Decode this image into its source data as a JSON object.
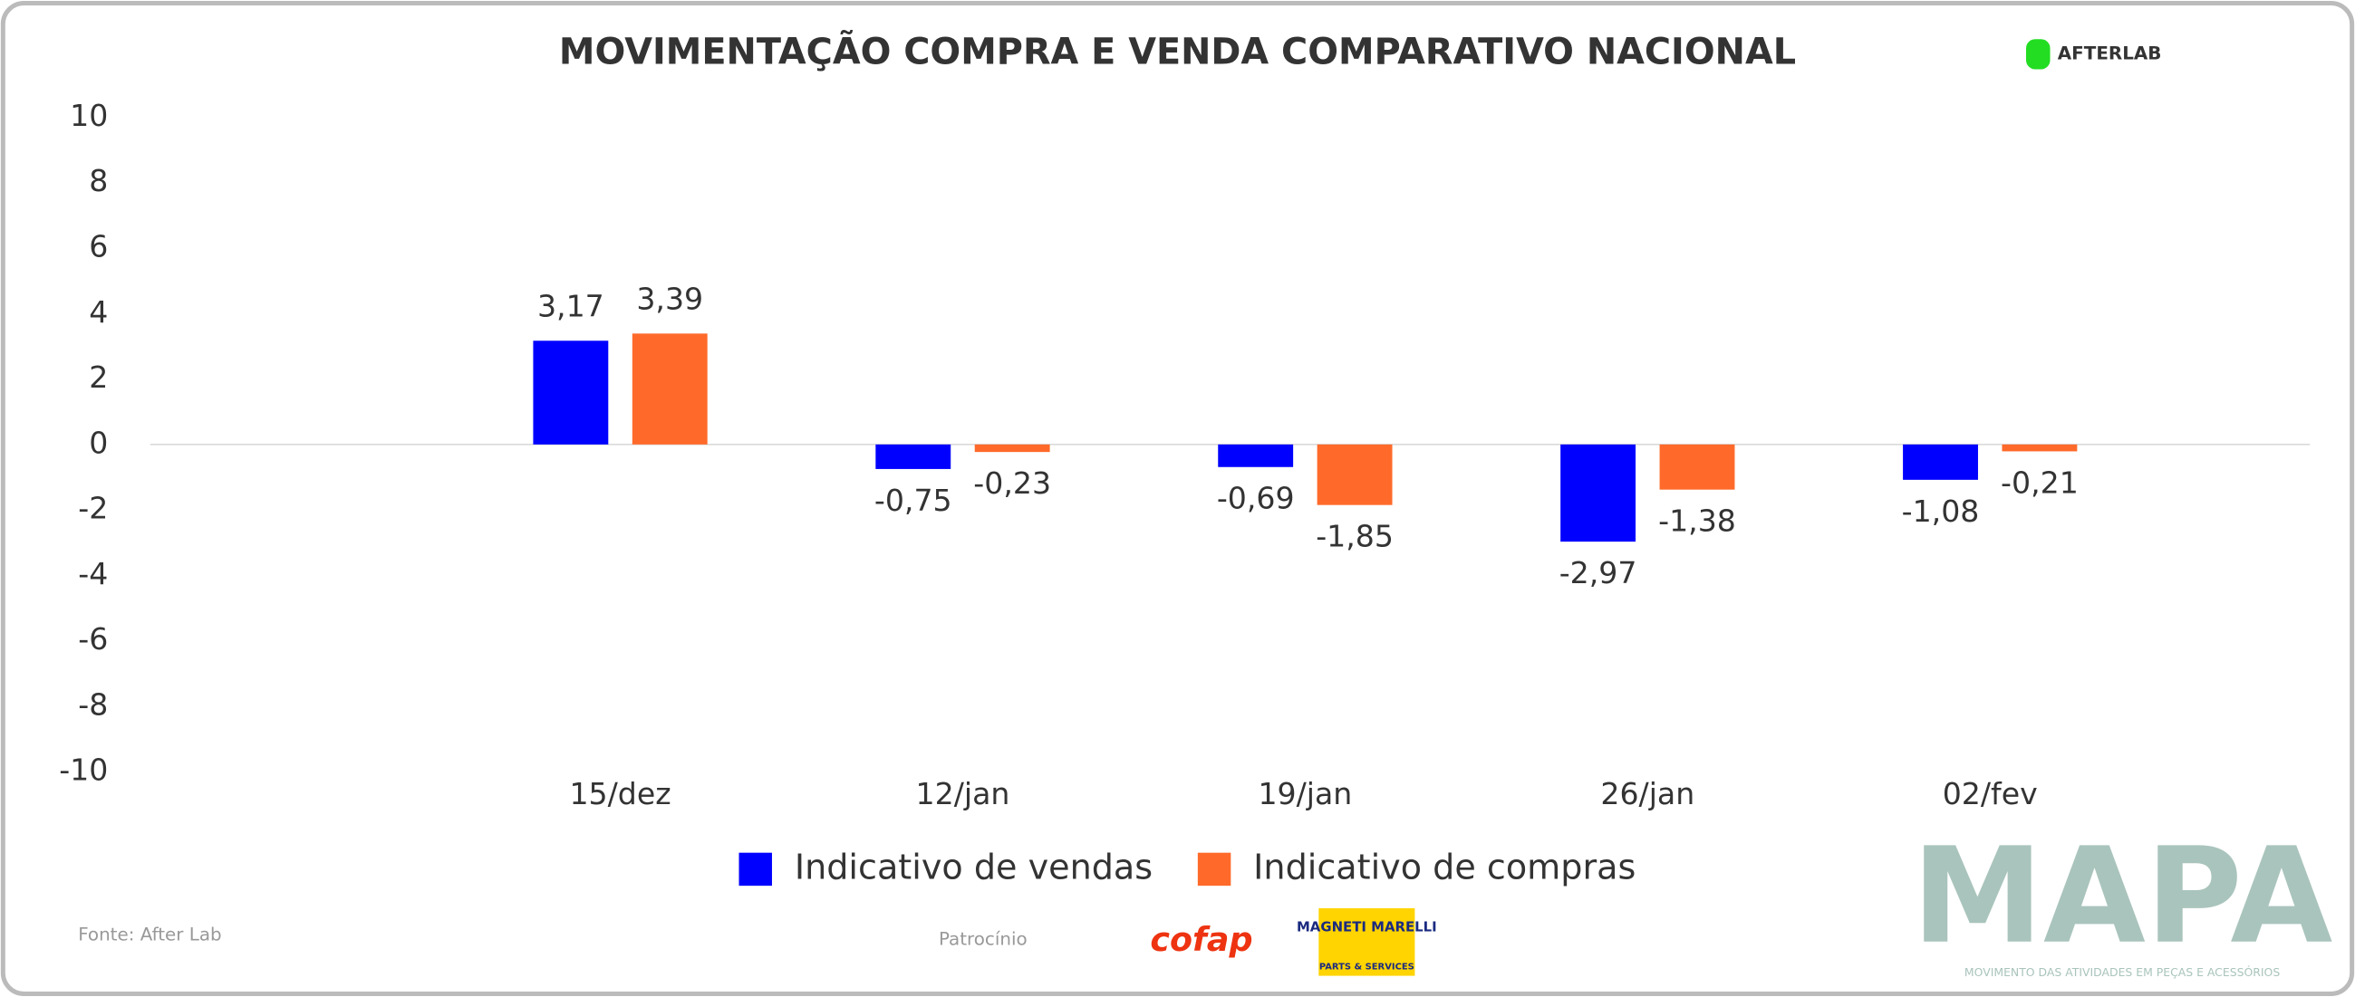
{
  "chart_data": {
    "type": "bar",
    "title": "MOVIMENTAÇÃO COMPRA E VENDA COMPARATIVO NACIONAL",
    "categories": [
      "15/dez",
      "12/jan",
      "19/jan",
      "26/jan",
      "02/fev"
    ],
    "series": [
      {
        "name": "Indicativo de vendas",
        "color": "#0000ff",
        "values": [
          3.17,
          -0.75,
          -0.69,
          -2.97,
          -1.08
        ],
        "value_labels": [
          "3,17",
          "-0,75",
          "-0,69",
          "-2,97",
          "-1,08"
        ]
      },
      {
        "name": "Indicativo de compras",
        "color": "#ff6a2a",
        "values": [
          3.39,
          -0.23,
          -1.85,
          -1.38,
          -0.21
        ],
        "value_labels": [
          "3,39",
          "-0,23",
          "-1,85",
          "-1,38",
          "-0,21"
        ]
      }
    ],
    "ylim": [
      -10,
      10
    ],
    "yticks": [
      -10,
      -8,
      -6,
      -4,
      -2,
      0,
      2,
      4,
      6,
      8,
      10
    ],
    "grid": false,
    "legend": "bottom"
  },
  "brand": "AFTERLAB",
  "source": "Fonte: After Lab",
  "sponsor_label": "Patrocínio",
  "sponsors": [
    "cofap",
    "MAGNETI MARELLI",
    "PARTS & SERVICES"
  ],
  "logo": {
    "title": "MAPA",
    "subtitle": "MOVIMENTO DAS ATIVIDADES EM PEÇAS E ACESSÓRIOS"
  }
}
